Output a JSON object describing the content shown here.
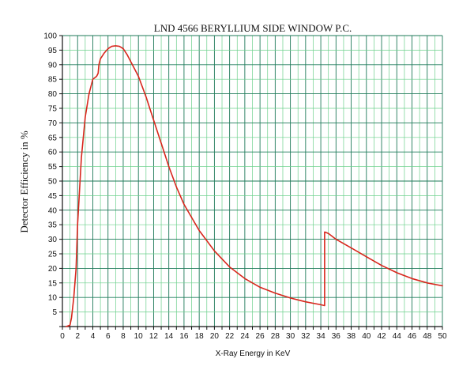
{
  "chart_data": {
    "type": "line",
    "title": "LND 4566 BERYLLIUM SIDE WINDOW P.C.",
    "xlabel": "X-Ray Energy in KeV",
    "ylabel": "Detector Efficiency in %",
    "xlim": [
      0,
      50
    ],
    "ylim": [
      0,
      100
    ],
    "x_major_ticks": [
      0,
      2,
      4,
      6,
      8,
      10,
      12,
      14,
      16,
      18,
      20,
      22,
      24,
      26,
      28,
      30,
      32,
      34,
      36,
      38,
      40,
      42,
      44,
      46,
      48,
      50
    ],
    "y_major_ticks": [
      5,
      10,
      15,
      20,
      25,
      30,
      35,
      40,
      45,
      50,
      55,
      60,
      65,
      70,
      75,
      80,
      85,
      90,
      95,
      100
    ],
    "x_grid_step": 1,
    "y_grid_step": 5,
    "grid": true,
    "series": [
      {
        "color": "#d8261c",
        "x": [
          0.5,
          1,
          1.2,
          1.5,
          1.8,
          2,
          2.5,
          3,
          3.5,
          4,
          4.5,
          4.7,
          4.8,
          5,
          5.5,
          6,
          6.5,
          7,
          7.5,
          8,
          8.5,
          9,
          9.5,
          10,
          11,
          12,
          13,
          14,
          15,
          16,
          18,
          20,
          22,
          24,
          26,
          28,
          30,
          32,
          34,
          34.5,
          34.5,
          35,
          36,
          38,
          40,
          42,
          44,
          46,
          48,
          50
        ],
        "y": [
          0,
          0.5,
          3,
          10,
          20,
          35,
          58,
          72,
          80,
          85,
          86,
          87,
          90,
          92,
          94,
          95.5,
          96.3,
          96.5,
          96.3,
          95.5,
          93.5,
          91,
          88.5,
          86,
          79,
          71,
          63,
          55,
          48,
          42,
          33,
          26,
          20.5,
          16.5,
          13.5,
          11.5,
          9.8,
          8.5,
          7.5,
          7.2,
          32.5,
          32,
          30,
          27,
          24,
          21,
          18.5,
          16.5,
          15,
          14
        ]
      }
    ],
    "colors": {
      "grid_major": "#1f7a5a",
      "grid_minor": "#6cd08c",
      "axis": "#111111",
      "line": "#d8261c"
    }
  }
}
